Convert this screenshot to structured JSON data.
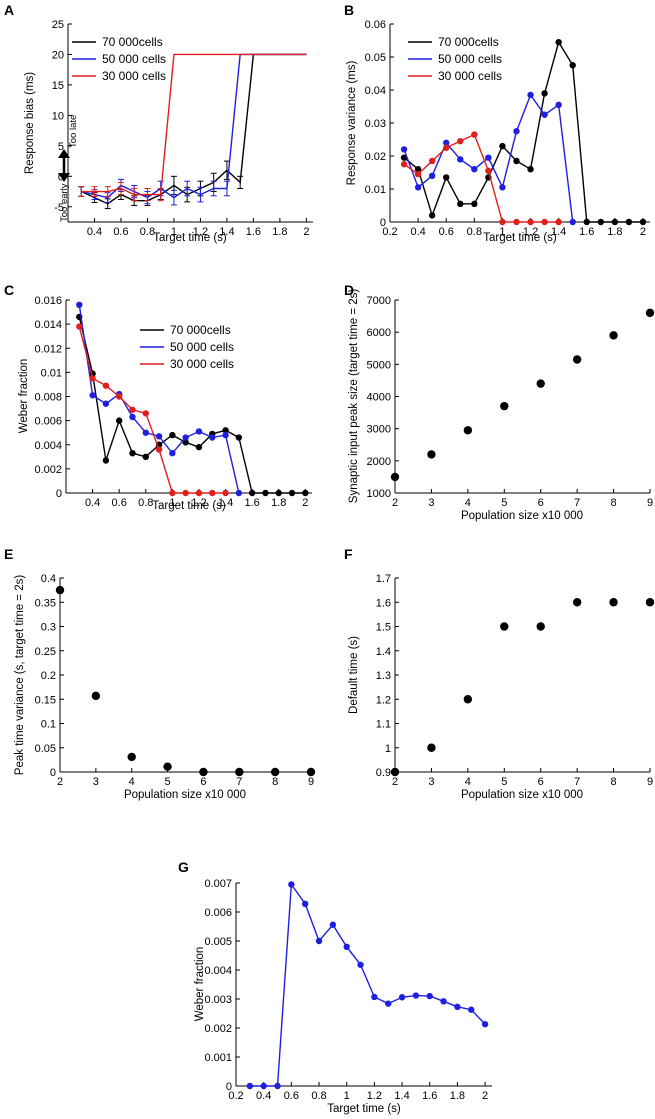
{
  "panels": {
    "A": {
      "letter": "A"
    },
    "B": {
      "letter": "B"
    },
    "C": {
      "letter": "C"
    },
    "D": {
      "letter": "D"
    },
    "E": {
      "letter": "E"
    },
    "F": {
      "letter": "F"
    },
    "G": {
      "letter": "G"
    }
  },
  "annotations": {
    "too_late": "Too late",
    "too_early": "Too early"
  },
  "chart_data": [
    {
      "id": "A",
      "type": "line",
      "xlabel": "Target time (s)",
      "ylabel": "Response bias (ms)",
      "xlim": [
        0.2,
        2.05
      ],
      "ylim": [
        -7.5,
        25
      ],
      "xticks": [
        0.4,
        0.6,
        0.8,
        1,
        1.2,
        1.4,
        1.6,
        1.8,
        2
      ],
      "yticks": [
        -5,
        0,
        5,
        10,
        15,
        20,
        25
      ],
      "legend": "top-left",
      "series": [
        {
          "name": "70 000cells",
          "color": "#000000",
          "x": [
            0.3,
            0.4,
            0.5,
            0.6,
            0.7,
            0.8,
            0.9,
            1.0,
            1.1,
            1.2,
            1.3,
            1.4,
            1.5,
            1.6,
            1.7,
            1.8,
            1.9,
            2.0
          ],
          "y": [
            -2.5,
            -3.5,
            -4.5,
            -3,
            -4,
            -4,
            -3,
            -1.5,
            -3,
            -2,
            -1,
            1,
            -1,
            20,
            20,
            20,
            20,
            20
          ],
          "err": [
            0.8,
            0.8,
            0.8,
            0.8,
            0.8,
            0.8,
            0.8,
            1.5,
            1.2,
            1.2,
            1.5,
            1.5,
            1,
            0,
            0,
            0,
            0,
            0
          ]
        },
        {
          "name": "50 000 cells",
          "color": "#1f1fe0",
          "x": [
            0.3,
            0.4,
            0.5,
            0.6,
            0.7,
            0.8,
            0.9,
            1.0,
            1.1,
            1.2,
            1.3,
            1.4,
            1.5,
            1.6,
            1.7,
            1.8,
            1.9,
            2.0
          ],
          "y": [
            -2.5,
            -3,
            -3.5,
            -1.5,
            -2.5,
            -3.5,
            -2,
            -3.5,
            -2,
            -3,
            -2,
            -2,
            20,
            20,
            20,
            20,
            20,
            20
          ],
          "err": [
            0.8,
            0.8,
            0.8,
            1,
            1,
            1,
            1.2,
            1.2,
            1.2,
            1.2,
            1.2,
            1.2,
            0,
            0,
            0,
            0,
            0,
            0
          ]
        },
        {
          "name": "30 000 cells",
          "color": "#e01f1f",
          "x": [
            0.3,
            0.4,
            0.5,
            0.6,
            0.7,
            0.8,
            0.9,
            1.0,
            1.1,
            1.2,
            1.3,
            1.4,
            1.5,
            1.6,
            1.7,
            1.8,
            1.9,
            2.0
          ],
          "y": [
            -2.5,
            -2.5,
            -2.5,
            -2,
            -3,
            -3,
            -3,
            20,
            20,
            20,
            20,
            20,
            20,
            20,
            20,
            20,
            20,
            20
          ],
          "err": [
            0.8,
            0.8,
            0.8,
            1,
            1,
            1,
            1,
            0,
            0,
            0,
            0,
            0,
            0,
            0,
            0,
            0,
            0,
            0
          ]
        }
      ]
    },
    {
      "id": "B",
      "type": "line",
      "xlabel": "Target time (s)",
      "ylabel": "Response variance (ms)",
      "xlim": [
        0.2,
        2.05
      ],
      "ylim": [
        0,
        0.06
      ],
      "xticks": [
        0.2,
        0.4,
        0.6,
        0.8,
        1,
        1.2,
        1.4,
        1.6,
        1.8,
        2
      ],
      "yticks": [
        0,
        0.01,
        0.02,
        0.03,
        0.04,
        0.05,
        0.06
      ],
      "legend": "top-left",
      "series": [
        {
          "name": "70 000cells",
          "color": "#000000",
          "x": [
            0.3,
            0.4,
            0.5,
            0.6,
            0.7,
            0.8,
            0.9,
            1.0,
            1.1,
            1.2,
            1.3,
            1.4,
            1.5,
            1.6,
            1.7,
            1.8,
            1.9,
            2.0
          ],
          "y": [
            0.0195,
            0.016,
            0.002,
            0.0135,
            0.0055,
            0.0055,
            0.0135,
            0.023,
            0.0185,
            0.016,
            0.039,
            0.0545,
            0.0475,
            0,
            0,
            0,
            0,
            0
          ]
        },
        {
          "name": "50 000 cells",
          "color": "#1f1fe0",
          "x": [
            0.3,
            0.4,
            0.5,
            0.6,
            0.7,
            0.8,
            0.9,
            1.0,
            1.1,
            1.2,
            1.3,
            1.4,
            1.5
          ],
          "y": [
            0.022,
            0.0105,
            0.014,
            0.024,
            0.019,
            0.016,
            0.0195,
            0.0105,
            0.0275,
            0.0385,
            0.0325,
            0.0355,
            0
          ]
        },
        {
          "name": "30 000 cells",
          "color": "#e01f1f",
          "x": [
            0.3,
            0.4,
            0.5,
            0.6,
            0.7,
            0.8,
            0.9,
            1.0,
            1.1,
            1.2,
            1.3,
            1.4
          ],
          "y": [
            0.0175,
            0.0145,
            0.0185,
            0.0225,
            0.0245,
            0.0265,
            0.0155,
            0,
            0,
            0,
            0,
            0
          ]
        }
      ]
    },
    {
      "id": "C",
      "type": "line",
      "xlabel": "Target time (s)",
      "ylabel": "Weber fraction",
      "xlim": [
        0.2,
        2.05
      ],
      "ylim": [
        0,
        0.016
      ],
      "xticks": [
        0.4,
        0.6,
        0.8,
        1,
        1.2,
        1.4,
        1.6,
        1.8,
        2
      ],
      "yticks": [
        0,
        0.002,
        0.004,
        0.006,
        0.008,
        0.01,
        0.012,
        0.014,
        0.016
      ],
      "legend": "center-right",
      "series": [
        {
          "name": "70 000cells",
          "color": "#000000",
          "x": [
            0.3,
            0.4,
            0.5,
            0.6,
            0.7,
            0.8,
            0.9,
            1.0,
            1.1,
            1.2,
            1.3,
            1.4,
            1.5,
            1.6,
            1.7,
            1.8,
            1.9,
            2.0
          ],
          "y": [
            0.0146,
            0.0099,
            0.0027,
            0.006,
            0.0033,
            0.003,
            0.004,
            0.0048,
            0.0042,
            0.0038,
            0.0049,
            0.0052,
            0.0046,
            0,
            0,
            0,
            0,
            0
          ]
        },
        {
          "name": "50 000 cells",
          "color": "#1f1fe0",
          "x": [
            0.3,
            0.4,
            0.5,
            0.6,
            0.7,
            0.8,
            0.9,
            1.0,
            1.1,
            1.2,
            1.3,
            1.4,
            1.5
          ],
          "y": [
            0.0156,
            0.0081,
            0.0074,
            0.0082,
            0.0063,
            0.005,
            0.0047,
            0.0033,
            0.0046,
            0.0051,
            0.0046,
            0.0048,
            0
          ]
        },
        {
          "name": "30 000 cells",
          "color": "#e01f1f",
          "x": [
            0.3,
            0.4,
            0.5,
            0.6,
            0.7,
            0.8,
            0.9,
            1.0,
            1.1,
            1.2,
            1.3,
            1.4
          ],
          "y": [
            0.0138,
            0.0095,
            0.0089,
            0.008,
            0.0069,
            0.0066,
            0.0036,
            0,
            0,
            0,
            0,
            0
          ]
        }
      ]
    },
    {
      "id": "D",
      "type": "scatter",
      "xlabel": "Population size x10 000",
      "ylabel": "Synaptic input peak size (target time = 2s)",
      "xlim": [
        2,
        9
      ],
      "ylim": [
        1000,
        7000
      ],
      "xticks": [
        2,
        3,
        4,
        5,
        6,
        7,
        8,
        9
      ],
      "yticks": [
        1000,
        2000,
        3000,
        4000,
        5000,
        6000,
        7000
      ],
      "series": [
        {
          "name": "",
          "color": "#000000",
          "x": [
            2,
            3,
            4,
            5,
            6,
            7,
            8,
            9
          ],
          "y": [
            1500,
            2200,
            2950,
            3700,
            4400,
            5150,
            5900,
            6600
          ]
        }
      ]
    },
    {
      "id": "E",
      "type": "scatter",
      "xlabel": "Population size x10 000",
      "ylabel": "Peak time variance (s, target time = 2s)",
      "xlim": [
        2,
        9
      ],
      "ylim": [
        0,
        0.4
      ],
      "xticks": [
        2,
        3,
        4,
        5,
        6,
        7,
        8,
        9
      ],
      "yticks": [
        0,
        0.05,
        0.1,
        0.15,
        0.2,
        0.25,
        0.3,
        0.35,
        0.4
      ],
      "series": [
        {
          "name": "",
          "color": "#000000",
          "x": [
            2,
            3,
            4,
            5,
            6,
            7,
            8,
            9
          ],
          "y": [
            0.375,
            0.157,
            0.031,
            0.011,
            0,
            0,
            0,
            0
          ]
        }
      ]
    },
    {
      "id": "F",
      "type": "scatter",
      "xlabel": "Population size x10 000",
      "ylabel": "Default time (s)",
      "xlim": [
        2,
        9
      ],
      "ylim": [
        0.9,
        1.7
      ],
      "xticks": [
        2,
        3,
        4,
        5,
        6,
        7,
        8,
        9
      ],
      "yticks": [
        0.9,
        1,
        1.1,
        1.2,
        1.3,
        1.4,
        1.5,
        1.6,
        1.7
      ],
      "series": [
        {
          "name": "",
          "color": "#000000",
          "x": [
            2,
            3,
            4,
            5,
            6,
            7,
            8,
            9
          ],
          "y": [
            0.9,
            1.0,
            1.2,
            1.5,
            1.5,
            1.6,
            1.6,
            1.6
          ]
        }
      ]
    },
    {
      "id": "G",
      "type": "line",
      "xlabel": "Target time (s)",
      "ylabel": "Weber fraction",
      "xlim": [
        0.2,
        2.05
      ],
      "ylim": [
        0,
        0.007
      ],
      "xticks": [
        0.2,
        0.4,
        0.6,
        0.8,
        1,
        1.2,
        1.4,
        1.6,
        1.8,
        2
      ],
      "yticks": [
        0,
        0.001,
        0.002,
        0.003,
        0.004,
        0.005,
        0.006,
        0.007
      ],
      "series": [
        {
          "name": "",
          "color": "#1f1fe0",
          "x": [
            0.3,
            0.4,
            0.5,
            0.6,
            0.7,
            0.8,
            0.9,
            1.0,
            1.1,
            1.2,
            1.3,
            1.4,
            1.5,
            1.6,
            1.7,
            1.8,
            1.9,
            2.0
          ],
          "y": [
            0,
            0,
            0,
            0.00695,
            0.00628,
            0.005,
            0.00556,
            0.0048,
            0.00418,
            0.00307,
            0.00284,
            0.00306,
            0.00312,
            0.0031,
            0.00292,
            0.00273,
            0.00263,
            0.00213
          ]
        }
      ]
    }
  ]
}
